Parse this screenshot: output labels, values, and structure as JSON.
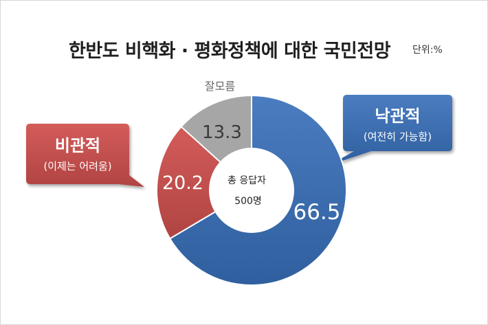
{
  "chart_data": {
    "type": "pie",
    "title": "한반도 비핵화 · 평화정책에 대한 국민전망",
    "unit_label": "단위:%",
    "slices": [
      {
        "label": "낙관적",
        "sublabel": "(여전히 가능함)",
        "value": 66.5,
        "value_label": "66.5",
        "color": "#3f6fb0"
      },
      {
        "label": "비관적",
        "sublabel": "(이제는 어려움)",
        "value": 20.2,
        "value_label": "20.2",
        "color": "#c6504e"
      },
      {
        "label": "잘모름",
        "sublabel": "",
        "value": 13.3,
        "value_label": "13.3",
        "color": "#a6a6a6"
      }
    ],
    "center_label": "총 응답자",
    "center_value": "500명",
    "donut": true
  }
}
